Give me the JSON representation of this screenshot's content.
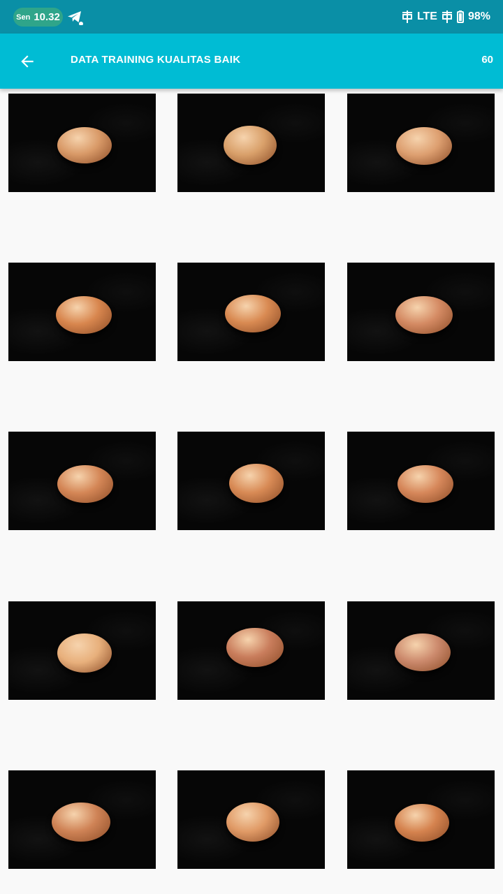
{
  "status_bar": {
    "day": "Sen",
    "time": "10.32",
    "network": "LTE",
    "battery": "98%",
    "icons": [
      "telegram-icon",
      "signal-icon",
      "signal-icon",
      "battery-icon"
    ]
  },
  "app_bar": {
    "back_icon": "arrow-left-icon",
    "title": "DATA TRAINING KUALITAS BAIK",
    "count": "60"
  },
  "grid": {
    "columns": 3,
    "items": [
      {
        "egg_color": "#d99a68"
      },
      {
        "egg_color": "#d9a06a"
      },
      {
        "egg_color": "#dd9f70"
      },
      {
        "egg_color": "#d8864e"
      },
      {
        "egg_color": "#d98a52"
      },
      {
        "egg_color": "#d48a63"
      },
      {
        "egg_color": "#d48656"
      },
      {
        "egg_color": "#d88a55"
      },
      {
        "egg_color": "#d6875a"
      },
      {
        "egg_color": "#e8b07c"
      },
      {
        "egg_color": "#c97d5c"
      },
      {
        "egg_color": "#cc8a6d"
      },
      {
        "egg_color": "#cf8356"
      },
      {
        "egg_color": "#e09a66"
      },
      {
        "egg_color": "#d5834f"
      }
    ]
  }
}
